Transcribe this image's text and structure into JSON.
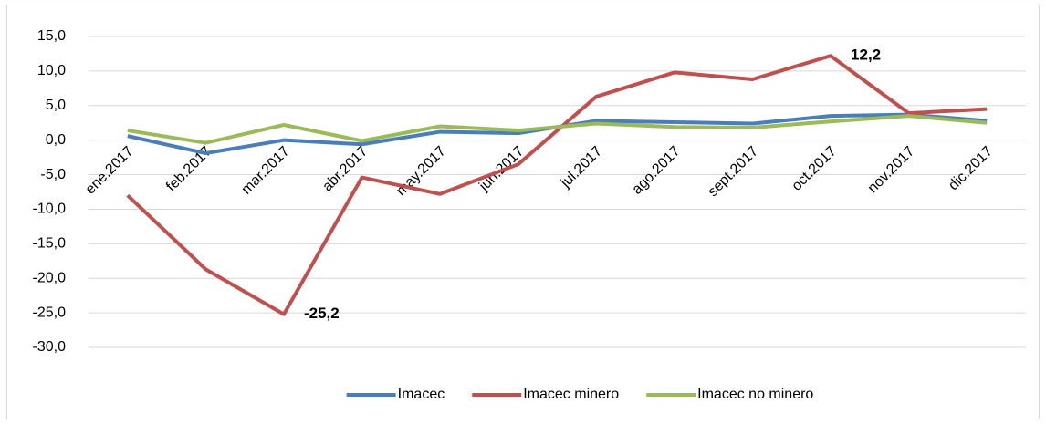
{
  "chart_data": {
    "type": "line",
    "categories": [
      "ene.2017",
      "feb.2017",
      "mar.2017",
      "abr.2017",
      "may.2017",
      "jun.2017",
      "jul.2017",
      "ago.2017",
      "sept.2017",
      "oct.2017",
      "nov.2017",
      "dic.2017"
    ],
    "series": [
      {
        "name": "Imacec",
        "color": "#4a7ebb",
        "values": [
          0.6,
          -1.9,
          0.0,
          -0.6,
          1.2,
          1.0,
          2.8,
          2.6,
          2.4,
          3.5,
          3.7,
          2.8
        ]
      },
      {
        "name": "Imacec minero",
        "color": "#c0504d",
        "values": [
          -8.0,
          -18.7,
          -25.2,
          -5.4,
          -7.8,
          -3.5,
          6.3,
          9.8,
          8.8,
          12.2,
          3.9,
          4.5
        ],
        "value_labels": [
          null,
          null,
          "-25,2",
          null,
          null,
          null,
          null,
          null,
          null,
          "12,2",
          null,
          null
        ],
        "value_label_colors": [
          null,
          null,
          "#ff0000",
          null,
          null,
          null,
          null,
          null,
          null,
          "#000000",
          null,
          null
        ]
      },
      {
        "name": "Imacec no minero",
        "color": "#9bbb59",
        "values": [
          1.4,
          -0.4,
          2.2,
          -0.1,
          2.0,
          1.4,
          2.4,
          1.9,
          1.8,
          2.7,
          3.5,
          2.5
        ]
      }
    ],
    "ylim": [
      -30,
      15
    ],
    "yticks": [
      {
        "value": 15,
        "label": "15,0"
      },
      {
        "value": 10,
        "label": "10,0"
      },
      {
        "value": 5,
        "label": "5,0"
      },
      {
        "value": 0,
        "label": "0,0"
      },
      {
        "value": -5,
        "label": "-5,0"
      },
      {
        "value": -10,
        "label": "-10,0"
      },
      {
        "value": -15,
        "label": "-15,0"
      },
      {
        "value": -20,
        "label": "-20,0"
      },
      {
        "value": -25,
        "label": "-25,0"
      },
      {
        "value": -30,
        "label": "-30,0"
      }
    ],
    "grid": true,
    "legend": "bottom"
  }
}
